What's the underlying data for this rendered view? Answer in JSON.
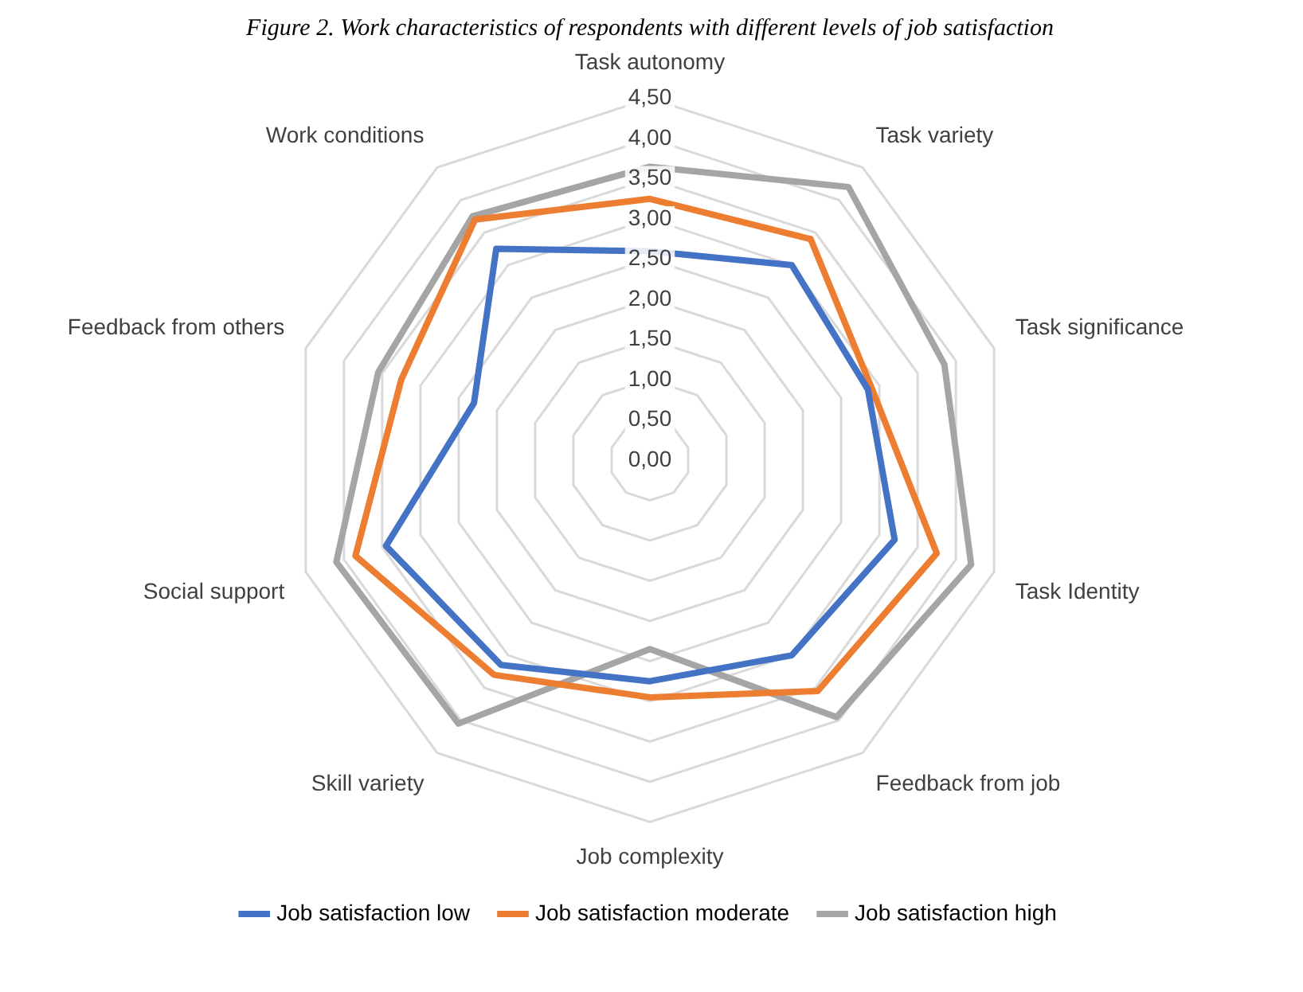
{
  "chart_data": {
    "type": "radar",
    "title": "Figure 2. Work characteristics of respondents with different levels of job satisfaction",
    "categories": [
      "Task autonomy",
      "Task variety",
      "Task significance",
      "Task Identity",
      "Feedback from job",
      "Job complexity",
      "Skill variety",
      "Social support",
      "Feedback from others",
      "Work conditions"
    ],
    "series": [
      {
        "name": "Job satisfaction low",
        "color": "#4472c4",
        "values": [
          2.6,
          3.0,
          2.85,
          3.2,
          3.0,
          2.75,
          3.15,
          3.45,
          2.3,
          3.25
        ]
      },
      {
        "name": "Job satisfaction moderate",
        "color": "#ed7d31",
        "values": [
          3.25,
          3.4,
          2.9,
          3.75,
          3.55,
          2.95,
          3.3,
          3.85,
          3.25,
          3.7
        ]
      },
      {
        "name": "Job satisfaction high",
        "color": "#a5a5a5",
        "values": [
          3.65,
          4.2,
          3.85,
          4.2,
          3.95,
          2.35,
          4.05,
          4.1,
          3.55,
          3.75
        ]
      }
    ],
    "ylim": [
      0,
      4.5
    ],
    "yticks": [
      {
        "value": 0,
        "label": "0,00"
      },
      {
        "value": 0.5,
        "label": "0,50"
      },
      {
        "value": 1,
        "label": "1,00"
      },
      {
        "value": 1.5,
        "label": "1,50"
      },
      {
        "value": 2,
        "label": "2,00"
      },
      {
        "value": 2.5,
        "label": "2,50"
      },
      {
        "value": 3,
        "label": "3,00"
      },
      {
        "value": 3.5,
        "label": "3,50"
      },
      {
        "value": 4,
        "label": "4,00"
      },
      {
        "value": 4.5,
        "label": "4,50"
      }
    ],
    "grid": true,
    "legend": "bottom",
    "marker": "none",
    "line_style": "solid"
  }
}
